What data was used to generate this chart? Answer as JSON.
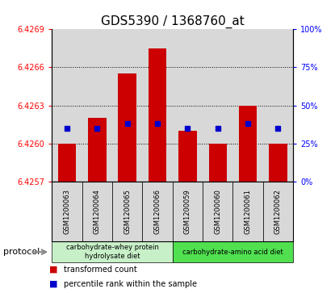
{
  "title": "GDS5390 / 1368760_at",
  "samples": [
    "GSM1200063",
    "GSM1200064",
    "GSM1200065",
    "GSM1200066",
    "GSM1200059",
    "GSM1200060",
    "GSM1200061",
    "GSM1200062"
  ],
  "red_values": [
    6.426,
    6.4262,
    6.42655,
    6.42675,
    6.4261,
    6.426,
    6.4263,
    6.426
  ],
  "blue_values": [
    35,
    35,
    38,
    38,
    35,
    35,
    38,
    35
  ],
  "y_min": 6.4257,
  "y_max": 6.4269,
  "y_ticks": [
    6.4257,
    6.426,
    6.4263,
    6.4266,
    6.4269
  ],
  "y_right_ticks": [
    0,
    25,
    50,
    75,
    100
  ],
  "grid_lines": [
    6.426,
    6.4263,
    6.4266
  ],
  "bar_color": "#cc0000",
  "blue_color": "#0000cc",
  "bar_width": 0.6,
  "group1_label": "carbohydrate-whey protein\nhydrolysate diet",
  "group2_label": "carbohydrate-amino acid diet",
  "group1_color": "#c8f0c8",
  "group2_color": "#50e050",
  "protocol_label": "protocol",
  "legend_red_label": "transformed count",
  "legend_blue_label": "percentile rank within the sample",
  "sample_bg_color": "#d8d8d8",
  "title_fontsize": 11
}
